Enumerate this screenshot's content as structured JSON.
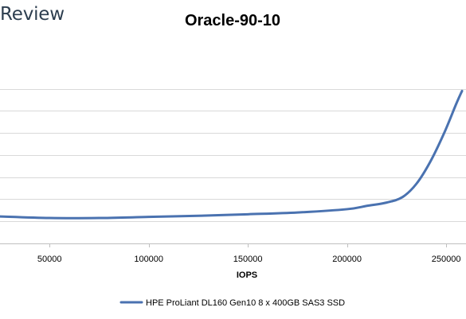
{
  "brand": {
    "text": "Review"
  },
  "chart_data": {
    "type": "line",
    "title": "Oracle-90-10",
    "xlabel": "IOPS",
    "ylabel": "",
    "xlim": [
      25000,
      260000
    ],
    "ylim": [
      0,
      9
    ],
    "x_ticks": [
      50000,
      100000,
      150000,
      200000,
      250000
    ],
    "x_tick_labels": [
      "50000",
      "100000",
      "150000",
      "200000",
      "250000"
    ],
    "y_gridlines": [
      1,
      2,
      3,
      4,
      5,
      6,
      7
    ],
    "y_tick_labels_visible": false,
    "grid": true,
    "legend_position": "bottom",
    "series": [
      {
        "name": "HPE ProLiant DL160 Gen10 8 x 400GB SAS3 SSD",
        "color": "#4a72b0",
        "x": [
          25000,
          50000,
          75000,
          100000,
          125000,
          150000,
          175000,
          200000,
          210000,
          220000,
          228000,
          235000,
          242000,
          249000,
          255000,
          258000
        ],
        "y": [
          1.22,
          1.15,
          1.15,
          1.2,
          1.25,
          1.32,
          1.4,
          1.55,
          1.7,
          1.85,
          2.1,
          2.7,
          3.7,
          5.0,
          6.3,
          6.9
        ]
      }
    ]
  }
}
